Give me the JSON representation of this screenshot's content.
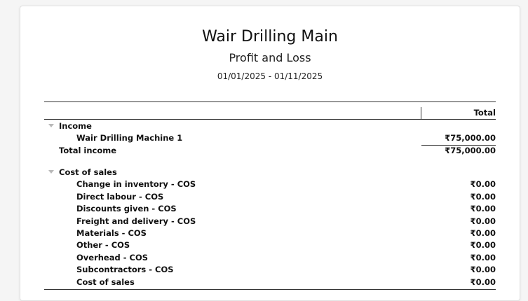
{
  "report": {
    "company": "Wair Drilling Main",
    "title": "Profit and Loss",
    "date_range": "01/01/2025 - 01/11/2025",
    "column_header": "Total"
  },
  "income": {
    "label": "Income",
    "items": [
      {
        "label": "Wair Drilling Machine 1",
        "amount": "₹75,000.00"
      }
    ],
    "total_label": "Total income",
    "total_amount": "₹75,000.00"
  },
  "cost_of_sales": {
    "label": "Cost of sales",
    "items": [
      {
        "label": "Change in inventory - COS",
        "amount": "₹0.00"
      },
      {
        "label": "Direct labour - COS",
        "amount": "₹0.00"
      },
      {
        "label": "Discounts given - COS",
        "amount": "₹0.00"
      },
      {
        "label": "Freight and delivery - COS",
        "amount": "₹0.00"
      },
      {
        "label": "Materials - COS",
        "amount": "₹0.00"
      },
      {
        "label": "Other - COS",
        "amount": "₹0.00"
      },
      {
        "label": "Overhead - COS",
        "amount": "₹0.00"
      },
      {
        "label": "Subcontractors - COS",
        "amount": "₹0.00"
      },
      {
        "label": "Cost of sales",
        "amount": "₹0.00"
      }
    ]
  }
}
